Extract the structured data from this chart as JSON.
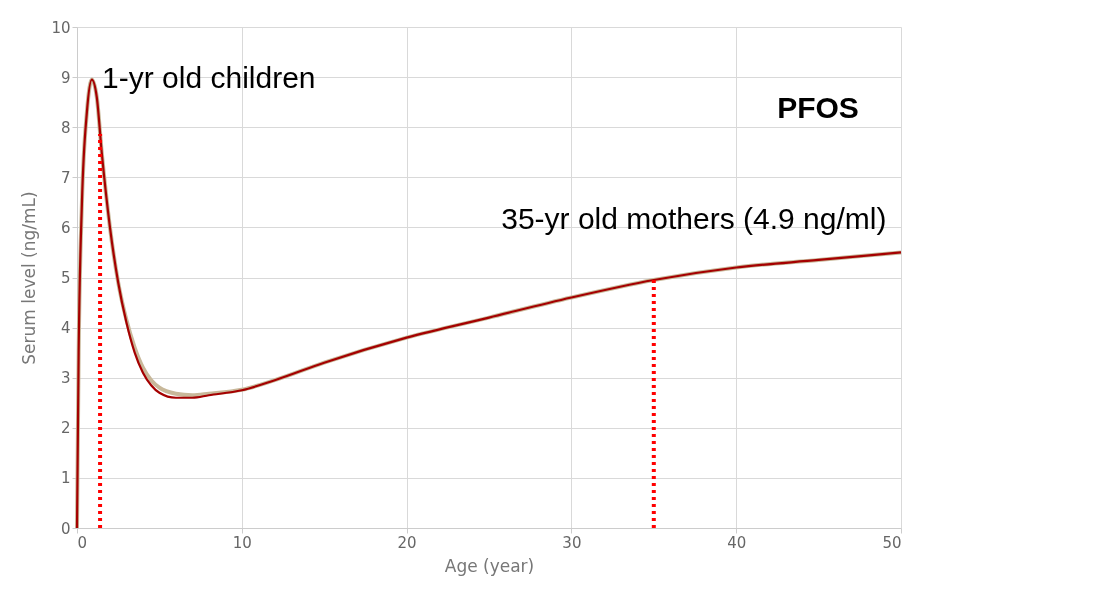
{
  "chart_data": {
    "type": "line",
    "xlabel": "Age (year)",
    "ylabel": "Serum level (ng/mL)",
    "xlim": [
      0,
      50
    ],
    "xticks": [
      0,
      10,
      20,
      30,
      40,
      50
    ],
    "ylim": [
      0,
      10
    ],
    "yticks": [
      0,
      1,
      2,
      3,
      4,
      5,
      6,
      7,
      8,
      9,
      10
    ],
    "grid": true,
    "marker": "none",
    "line_style": "solid",
    "series": [
      {
        "color": "#c8b89a",
        "x": [
          0,
          0.1,
          0.3,
          0.6,
          0.9,
          1.2,
          1.5,
          2,
          2.5,
          3,
          3.5,
          4,
          4.5,
          5,
          6,
          7,
          8,
          10,
          12,
          15,
          20,
          25,
          30,
          35,
          40,
          45,
          50
        ],
        "values": [
          0,
          3.5,
          6.5,
          8.3,
          8.95,
          8.6,
          7.5,
          6.0,
          4.9,
          4.15,
          3.6,
          3.2,
          2.95,
          2.8,
          2.68,
          2.65,
          2.68,
          2.76,
          2.95,
          3.3,
          3.8,
          4.2,
          4.6,
          4.95,
          5.2,
          5.35,
          5.5
        ]
      },
      {
        "color": "#a50000",
        "x": [
          0,
          0.1,
          0.3,
          0.6,
          0.9,
          1.2,
          1.5,
          2,
          2.5,
          3,
          3.5,
          4,
          4.5,
          5,
          6,
          7,
          8,
          10,
          12,
          15,
          20,
          25,
          30,
          35,
          40,
          45,
          50
        ],
        "values": [
          0,
          3.5,
          6.5,
          8.3,
          8.95,
          8.6,
          7.5,
          6.0,
          4.9,
          4.1,
          3.5,
          3.1,
          2.85,
          2.7,
          2.6,
          2.6,
          2.65,
          2.75,
          2.95,
          3.3,
          3.8,
          4.2,
          4.6,
          4.95,
          5.2,
          5.35,
          5.5
        ]
      }
    ],
    "ref_lines": [
      {
        "axis": "x",
        "value": 1.4,
        "label": "1-yr old children",
        "color": "#ff0000",
        "line_style": "dotted"
      },
      {
        "axis": "x",
        "value": 35,
        "label": "35-yr old mothers (4.9 ng/ml)",
        "color": "#ff0000",
        "line_style": "dotted"
      }
    ],
    "annotations": [
      "PFOS"
    ]
  }
}
